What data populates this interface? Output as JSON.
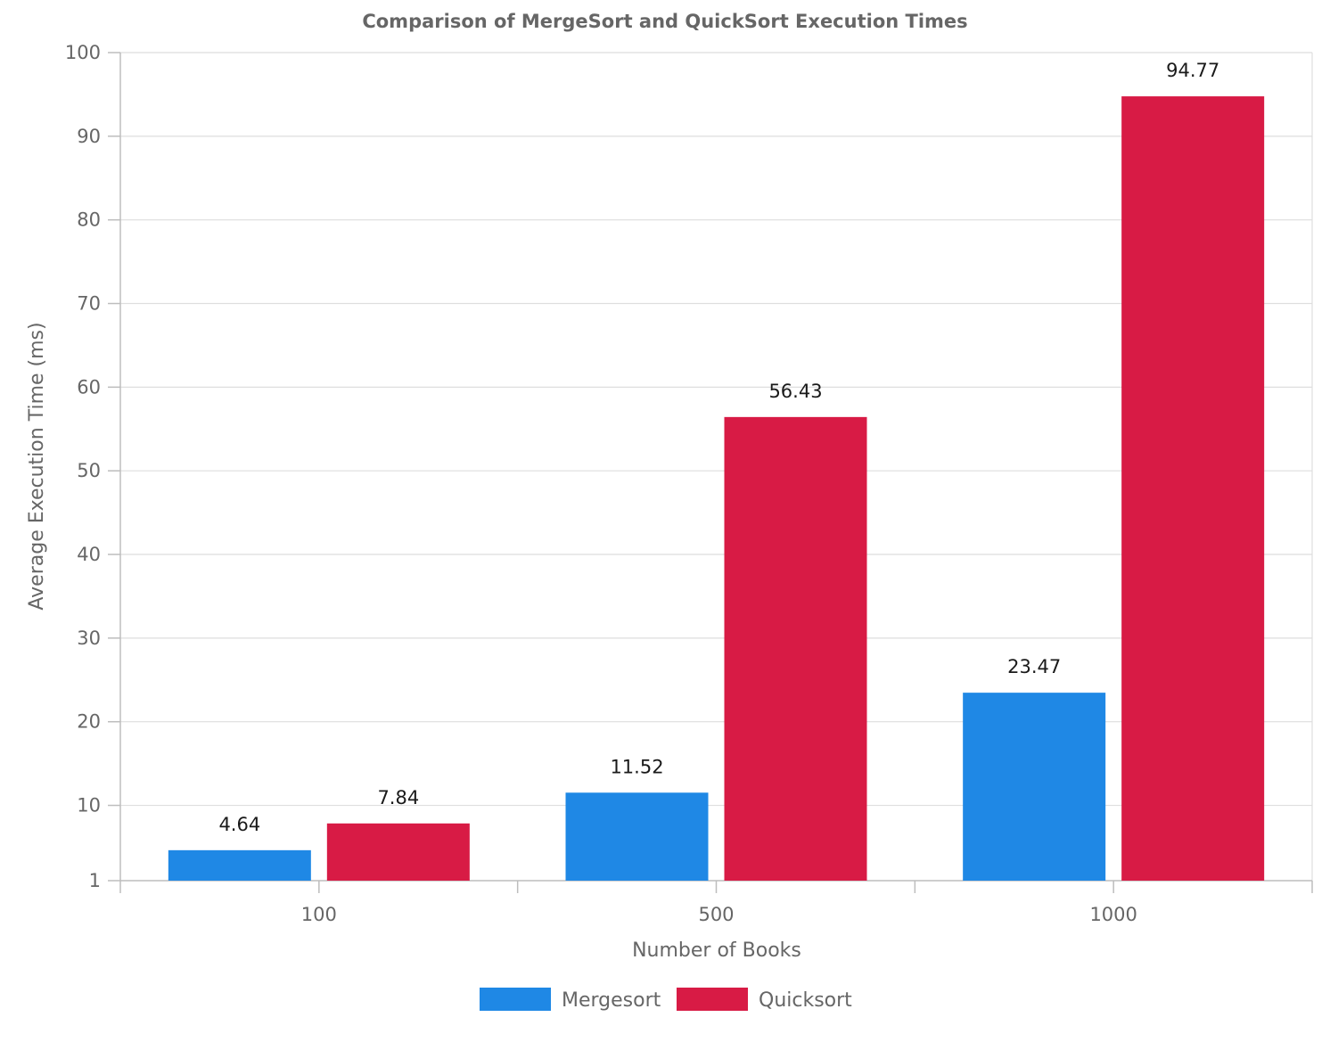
{
  "chart_data": {
    "type": "bar",
    "title": "Comparison of MergeSort and QuickSort Execution Times",
    "xlabel": "Number of Books",
    "ylabel": "Average Execution Time (ms)",
    "categories": [
      "100",
      "500",
      "1000"
    ],
    "series": [
      {
        "name": "Mergesort",
        "color": "#1f88e5",
        "values": [
          4.64,
          11.52,
          23.47
        ],
        "labels": [
          "4.64",
          "11.52",
          "23.47"
        ]
      },
      {
        "name": "Quicksort",
        "color": "#d81b45",
        "values": [
          7.84,
          56.43,
          94.77
        ],
        "labels": [
          "7.84",
          "56.43",
          "94.77"
        ]
      }
    ],
    "ylim": [
      1,
      100
    ],
    "yticks": [
      1,
      10,
      20,
      30,
      40,
      50,
      60,
      70,
      80,
      90,
      100
    ],
    "ytick_labels": [
      "1",
      "10",
      "20",
      "30",
      "40",
      "50",
      "60",
      "70",
      "80",
      "90",
      "100"
    ],
    "grid": true,
    "legend_position": "bottom-center"
  }
}
